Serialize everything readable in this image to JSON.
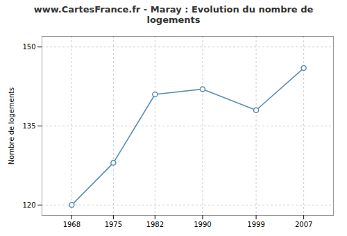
{
  "chart_data": {
    "type": "line",
    "title": "www.CartesFrance.fr - Maray : Evolution du nombre de logements",
    "ylabel": "Nombre de logements",
    "x": [
      1968,
      1975,
      1982,
      1990,
      1999,
      2007
    ],
    "values": [
      120,
      128,
      141,
      142,
      138,
      146
    ],
    "color": "#5b8db8",
    "marker": "circle",
    "xlim": [
      1963,
      2012
    ],
    "xticks": [
      1968,
      1975,
      1982,
      1990,
      1999,
      2007
    ],
    "ylim": [
      118,
      152
    ],
    "yticks": [
      120,
      135,
      150
    ],
    "grid": true
  }
}
